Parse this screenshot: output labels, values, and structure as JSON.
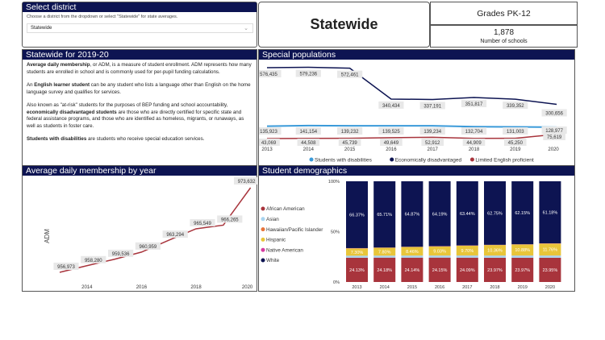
{
  "select": {
    "title": "Select district",
    "hint": "Choose a district from the dropdown or select \"Statewide\" for state averages.",
    "value": "Statewide"
  },
  "header": {
    "title": "Statewide",
    "grades": "Grades PK-12",
    "schools_count": "1,878",
    "schools_label": "Number of schools"
  },
  "desc": {
    "title": "Statewide for 2019-20",
    "p1_bold": "Average daily membership",
    "p1": ", or ADM, is a measure of student enrollment. ADM represents how many students are enrolled in school and is commonly used for per-pupil funding calculations.",
    "p2_pre": "An ",
    "p2_bold": "English learner student",
    "p2": " can be any student who lists a language other than English on the home language survey and qualifies for services.",
    "p3_pre": "Also known as \"at-risk\" students for the purposes of BEP funding and school accountability, ",
    "p3_bold": "economically disadvantaged students",
    "p3": " are those who are directly certified for specific state and federal assistance programs, and those who are identified as homeless, migrants, or runaways, as well as students in foster care.",
    "p4_bold": "Students with disabilities",
    "p4": " are students who receive special education services."
  },
  "chart_data": [
    {
      "type": "line",
      "title": "Special populations",
      "x": [
        "2013",
        "2014",
        "2015",
        "2016",
        "2017",
        "2018",
        "2019",
        "2020"
      ],
      "series": [
        {
          "name": "Students with disabilities",
          "color": "#3a9ad9",
          "values": [
            135923,
            141154,
            139232,
            139525,
            139234,
            132704,
            131003,
            128977
          ]
        },
        {
          "name": "Economically disadvantaged",
          "color": "#0d1452",
          "values": [
            576435,
            579236,
            572461,
            340434,
            337191,
            351817,
            339352,
            300656
          ]
        },
        {
          "name": "Limited English proficient",
          "color": "#a8343c",
          "values": [
            43069,
            44508,
            45739,
            49649,
            52912,
            44909,
            45250,
            75619
          ]
        }
      ],
      "legend": "bottom"
    },
    {
      "type": "line",
      "title": "Average daily membership by year",
      "ylabel": "ADM",
      "x": [
        "2013",
        "2014",
        "2015",
        "2016",
        "2017",
        "2018",
        "2019",
        "2020"
      ],
      "x_tick_labels": [
        "2014",
        "2016",
        "2018",
        "2020"
      ],
      "values": [
        956973,
        958280,
        959536,
        960959,
        963294,
        965549,
        966265,
        973632
      ],
      "color": "#a8343c"
    },
    {
      "type": "bar",
      "stacked": true,
      "title": "Student demographics",
      "categories": [
        "2013",
        "2014",
        "2015",
        "2016",
        "2017",
        "2018",
        "2019",
        "2020"
      ],
      "y_ticks": [
        "0%",
        "50%",
        "100%"
      ],
      "legend": "left",
      "series": [
        {
          "name": "African American",
          "color": "#a8343c",
          "values": [
            24.13,
            24.18,
            24.14,
            24.15,
            24.09,
            23.97,
            23.97,
            23.95
          ]
        },
        {
          "name": "Asian",
          "color": "#a8d4ef",
          "values": [
            1.9,
            1.9,
            2.0,
            2.0,
            2.1,
            2.1,
            2.1,
            2.1
          ]
        },
        {
          "name": "Hawaiian/Pacific Islander",
          "color": "#e8743b",
          "values": [
            0.1,
            0.1,
            0.1,
            0.1,
            0.1,
            0.1,
            0.1,
            0.1
          ]
        },
        {
          "name": "Hispanic",
          "color": "#e8c53a",
          "values": [
            7.3,
            7.8,
            8.46,
            9.03,
            9.7,
            10.36,
            10.88,
            11.76
          ]
        },
        {
          "name": "Native American",
          "color": "#d63ba0",
          "values": [
            0.2,
            0.2,
            0.2,
            0.2,
            0.2,
            0.2,
            0.2,
            0.2
          ]
        },
        {
          "name": "White",
          "color": "#0d1452",
          "values": [
            66.37,
            65.71,
            64.87,
            64.19,
            63.44,
            62.75,
            62.15,
            61.18
          ]
        }
      ],
      "labels": {
        "African American": [
          "24.13%",
          "24.18%",
          "24.14%",
          "24.15%",
          "24.09%",
          "23.97%",
          "23.97%",
          "23.95%"
        ],
        "Hispanic": [
          "7.30%",
          "7.80%",
          "8.46%",
          "9.03%",
          "9.70%",
          "10.36%",
          "10.88%",
          "11.76%"
        ],
        "White": [
          "66.37%",
          "65.71%",
          "64.87%",
          "64.19%",
          "63.44%",
          "62.75%",
          "62.15%",
          "61.18%"
        ]
      }
    }
  ]
}
